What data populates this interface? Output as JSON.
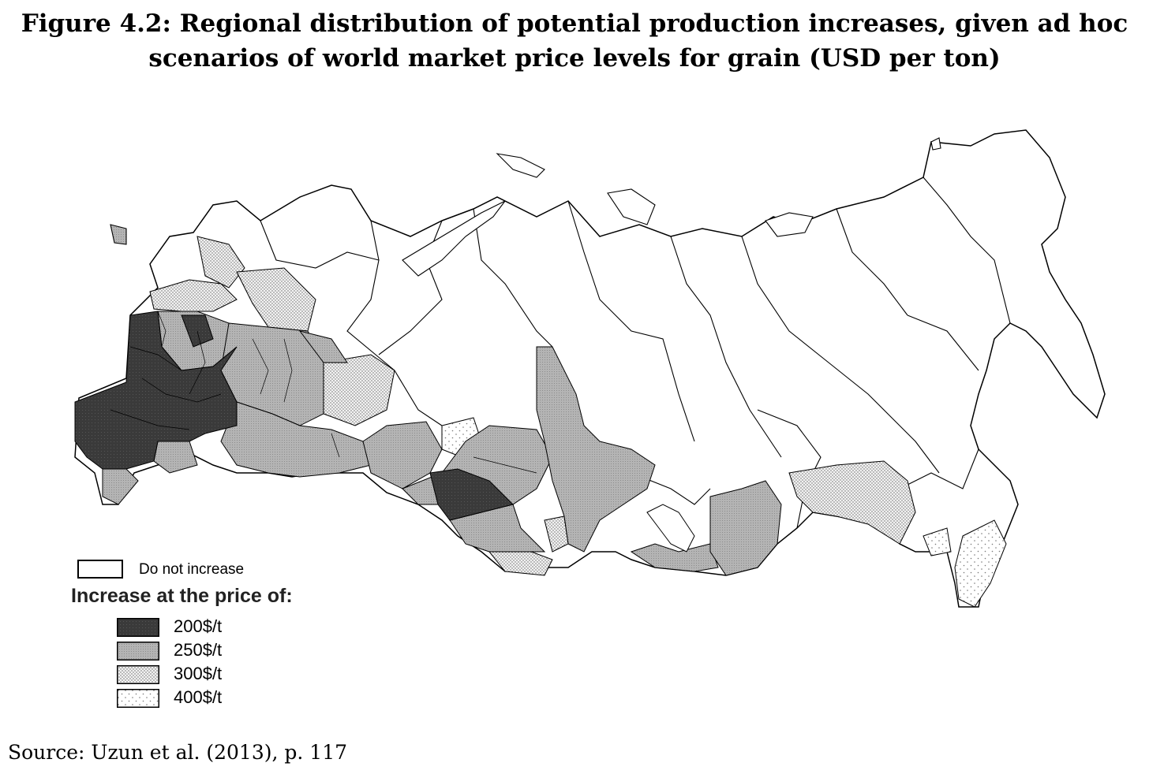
{
  "title": {
    "line1": "Figure 4.2: Regional distribution of potential production increases, given ad hoc",
    "line2": "scenarios of world market price levels for grain (USD per ton)"
  },
  "legend": {
    "none_label": "Do not increase",
    "heading": "Increase at the price of:",
    "items": [
      {
        "label": "200$/t",
        "pattern": "dark"
      },
      {
        "label": "250$/t",
        "pattern": "gray"
      },
      {
        "label": "300$/t",
        "pattern": "dense-dots"
      },
      {
        "label": "400$/t",
        "pattern": "sparse-dots"
      }
    ]
  },
  "colors": {
    "dark": "#3a3a3a",
    "gray": "#b4b4b4",
    "dots_bg": "#f2f2f2",
    "outline": "#000000"
  },
  "source": "Source: Uzun et al. (2013), p. 117"
}
